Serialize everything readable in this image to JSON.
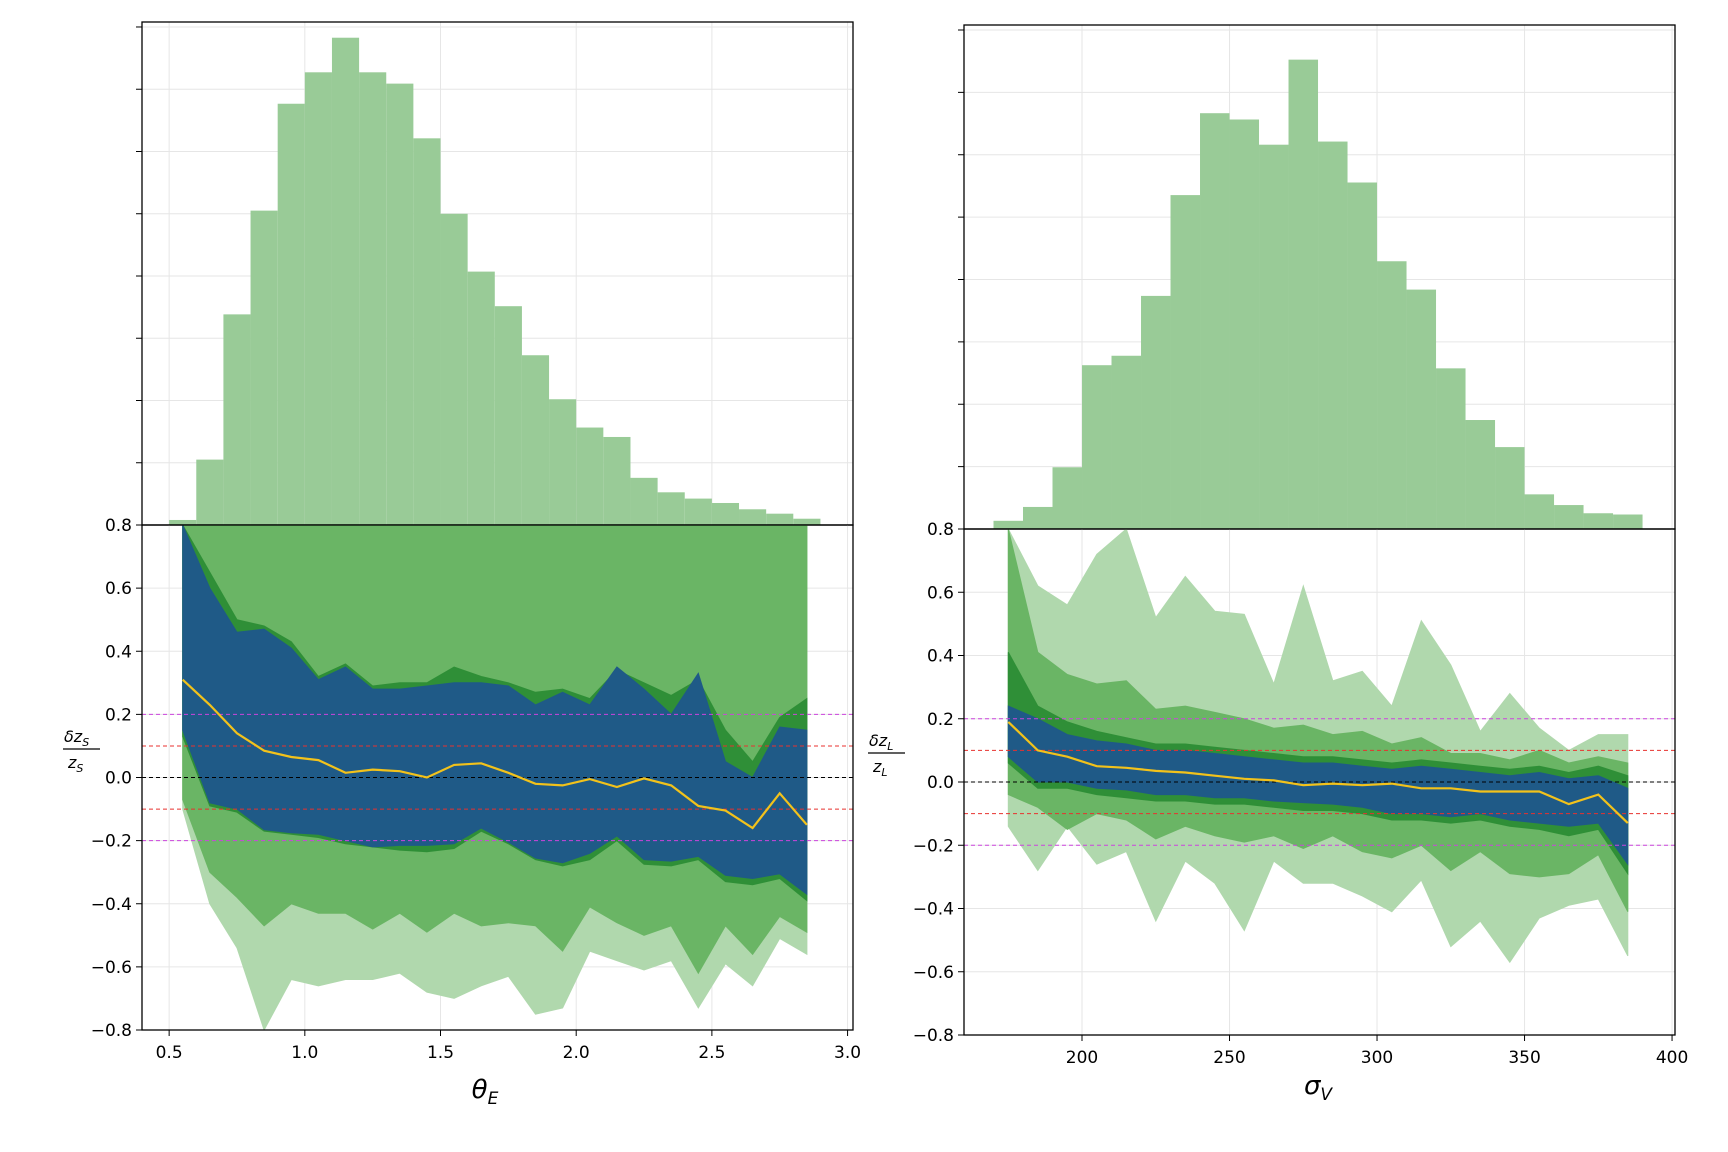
{
  "chart_data": [
    {
      "type": "histogram",
      "panel": "left-top",
      "bin_edges": [
        0.5,
        0.6,
        0.7,
        0.8,
        0.9,
        1.0,
        1.1,
        1.2,
        1.3,
        1.4,
        1.5,
        1.6,
        1.7,
        1.8,
        1.9,
        2.0,
        2.1,
        2.2,
        2.3,
        2.4,
        2.5,
        2.6,
        2.7,
        2.8,
        2.9
      ],
      "counts": [
        0.8,
        10.4,
        33.5,
        50.0,
        67.0,
        72.0,
        77.5,
        72.0,
        70.2,
        61.5,
        49.5,
        40.3,
        34.8,
        27.0,
        20.0,
        15.5,
        14.0,
        7.5,
        5.2,
        4.2,
        3.5,
        2.5,
        1.8,
        1.0
      ],
      "ylim": [
        0,
        80
      ],
      "color": "#99cb97"
    },
    {
      "type": "band",
      "panel": "left-bottom",
      "x": [
        0.55,
        0.65,
        0.75,
        0.85,
        0.95,
        1.05,
        1.15,
        1.25,
        1.35,
        1.45,
        1.55,
        1.65,
        1.75,
        1.85,
        1.95,
        2.05,
        2.15,
        2.25,
        2.35,
        2.45,
        2.55,
        2.65,
        2.75,
        2.85
      ],
      "median": [
        0.31,
        0.23,
        0.14,
        0.085,
        0.065,
        0.055,
        0.015,
        0.025,
        0.02,
        0.0,
        0.04,
        0.045,
        0.015,
        -0.02,
        -0.025,
        -0.005,
        -0.03,
        -0.003,
        -0.025,
        -0.09,
        -0.105,
        -0.16,
        -0.05,
        -0.15
      ],
      "inner_band": {
        "lower": [
          0.15,
          -0.08,
          -0.1,
          -0.165,
          -0.175,
          -0.18,
          -0.2,
          -0.22,
          -0.215,
          -0.215,
          -0.21,
          -0.16,
          -0.205,
          -0.255,
          -0.27,
          -0.24,
          -0.185,
          -0.26,
          -0.265,
          -0.25,
          -0.31,
          -0.32,
          -0.305,
          -0.37
        ],
        "upper": [
          0.8,
          0.6,
          0.46,
          0.47,
          0.41,
          0.31,
          0.35,
          0.28,
          0.28,
          0.29,
          0.3,
          0.3,
          0.29,
          0.23,
          0.27,
          0.23,
          0.35,
          0.28,
          0.2,
          0.33,
          0.05,
          0.0,
          0.16,
          0.15
        ],
        "color": "#1f5a87"
      },
      "middle_band": {
        "lower": [
          0.13,
          -0.09,
          -0.11,
          -0.17,
          -0.18,
          -0.19,
          -0.21,
          -0.22,
          -0.23,
          -0.235,
          -0.225,
          -0.17,
          -0.21,
          -0.26,
          -0.28,
          -0.26,
          -0.2,
          -0.275,
          -0.28,
          -0.26,
          -0.33,
          -0.34,
          -0.32,
          -0.39
        ],
        "upper": [
          0.8,
          0.65,
          0.5,
          0.48,
          0.43,
          0.32,
          0.36,
          0.29,
          0.3,
          0.3,
          0.35,
          0.32,
          0.3,
          0.27,
          0.28,
          0.25,
          0.34,
          0.3,
          0.26,
          0.31,
          0.15,
          0.05,
          0.19,
          0.25
        ],
        "color": "#2f8f37"
      },
      "outer_band": {
        "lower": [
          -0.07,
          -0.3,
          -0.38,
          -0.47,
          -0.4,
          -0.43,
          -0.43,
          -0.48,
          -0.43,
          -0.49,
          -0.43,
          -0.47,
          -0.46,
          -0.47,
          -0.55,
          -0.41,
          -0.46,
          -0.5,
          -0.47,
          -0.62,
          -0.47,
          -0.56,
          -0.44,
          -0.49
        ],
        "upper": [
          0.8,
          0.8,
          0.8,
          0.8,
          0.8,
          0.8,
          0.8,
          0.8,
          0.8,
          0.8,
          0.8,
          0.8,
          0.8,
          0.8,
          0.8,
          0.8,
          0.8,
          0.8,
          0.8,
          0.8,
          0.8,
          0.8,
          0.8,
          0.8
        ],
        "color": "#6ab565"
      },
      "outermost_band": {
        "lower": [
          -0.1,
          -0.4,
          -0.54,
          -0.8,
          -0.64,
          -0.66,
          -0.64,
          -0.64,
          -0.62,
          -0.68,
          -0.7,
          -0.66,
          -0.63,
          -0.75,
          -0.73,
          -0.55,
          -0.58,
          -0.61,
          -0.58,
          -0.73,
          -0.59,
          -0.66,
          -0.51,
          -0.56
        ],
        "upper": [
          0.8,
          0.8,
          0.8,
          0.8,
          0.8,
          0.72,
          0.8,
          0.8,
          0.8,
          0.7,
          0.8,
          0.8,
          0.8,
          0.8,
          0.73,
          0.62,
          0.8,
          0.8,
          0.55,
          0.8,
          0.8,
          0.5,
          0.49,
          0.8
        ],
        "color": "#b0d8ad"
      },
      "reference_lines": [
        {
          "y": 0.0,
          "color": "#000000"
        },
        {
          "y": 0.1,
          "color": "#e8322f"
        },
        {
          "y": -0.1,
          "color": "#e8322f"
        },
        {
          "y": 0.2,
          "color": "#cc44dd"
        },
        {
          "y": -0.2,
          "color": "#cc44dd"
        }
      ],
      "median_color": "#f2c21b",
      "xlim": [
        0.4,
        3.02
      ],
      "ylim": [
        -0.8,
        0.8
      ],
      "xticks": [
        0.5,
        1.0,
        1.5,
        2.0,
        2.5,
        3.0
      ],
      "xtick_labels": [
        "0.5",
        "1.0",
        "1.5",
        "2.0",
        "2.5",
        "3.0"
      ],
      "yticks": [
        -0.8,
        -0.6,
        -0.4,
        -0.2,
        0.0,
        0.2,
        0.4,
        0.6,
        0.8
      ],
      "ytick_labels": [
        "−0.8",
        "−0.6",
        "−0.4",
        "−0.2",
        "0.0",
        "0.2",
        "0.4",
        "0.6",
        "0.8"
      ],
      "xlabel": "θ",
      "xlabel_sub": "E",
      "ylabel_num": "δz",
      "ylabel_num_sub": "S",
      "ylabel_den": "z",
      "ylabel_den_sub": "S"
    },
    {
      "type": "histogram",
      "panel": "right-top",
      "bin_edges": [
        170,
        180,
        190,
        200,
        210,
        220,
        230,
        240,
        250,
        260,
        270,
        280,
        290,
        300,
        310,
        320,
        330,
        340,
        350,
        360,
        370,
        380,
        390
      ],
      "counts": [
        1.3,
        3.5,
        9.8,
        26.0,
        27.5,
        37.0,
        53.0,
        66.0,
        65.0,
        61.0,
        74.5,
        61.5,
        55.0,
        42.5,
        38.0,
        25.5,
        17.3,
        13.0,
        5.5,
        3.8,
        2.5,
        2.3
      ],
      "ylim": [
        0,
        80
      ],
      "color": "#99cb97"
    },
    {
      "type": "band",
      "panel": "right-bottom",
      "x": [
        175,
        185,
        195,
        205,
        215,
        225,
        235,
        245,
        255,
        265,
        275,
        285,
        295,
        305,
        315,
        325,
        335,
        345,
        355,
        365,
        375,
        385
      ],
      "median": [
        0.19,
        0.1,
        0.08,
        0.05,
        0.045,
        0.035,
        0.03,
        0.02,
        0.01,
        0.005,
        -0.01,
        -0.005,
        -0.01,
        -0.005,
        -0.02,
        -0.02,
        -0.03,
        -0.03,
        -0.03,
        -0.07,
        -0.04,
        -0.13
      ],
      "inner_band": {
        "lower": [
          0.08,
          0.0,
          0.0,
          -0.02,
          -0.025,
          -0.04,
          -0.04,
          -0.05,
          -0.05,
          -0.06,
          -0.065,
          -0.07,
          -0.08,
          -0.1,
          -0.1,
          -0.11,
          -0.1,
          -0.12,
          -0.13,
          -0.14,
          -0.13,
          -0.26
        ],
        "upper": [
          0.24,
          0.2,
          0.15,
          0.13,
          0.12,
          0.1,
          0.1,
          0.09,
          0.08,
          0.07,
          0.06,
          0.06,
          0.05,
          0.04,
          0.05,
          0.04,
          0.03,
          0.02,
          0.03,
          0.01,
          0.02,
          -0.02
        ],
        "color": "#1f5a87"
      },
      "middle_band": {
        "lower": [
          0.06,
          -0.02,
          -0.02,
          -0.04,
          -0.05,
          -0.06,
          -0.06,
          -0.07,
          -0.07,
          -0.08,
          -0.09,
          -0.09,
          -0.1,
          -0.12,
          -0.12,
          -0.13,
          -0.12,
          -0.14,
          -0.15,
          -0.17,
          -0.15,
          -0.29
        ],
        "upper": [
          0.41,
          0.24,
          0.19,
          0.16,
          0.14,
          0.12,
          0.12,
          0.11,
          0.1,
          0.09,
          0.08,
          0.08,
          0.07,
          0.06,
          0.07,
          0.06,
          0.05,
          0.04,
          0.05,
          0.03,
          0.05,
          0.02
        ],
        "color": "#2f8f37"
      },
      "outer_band": {
        "lower": [
          -0.04,
          -0.08,
          -0.15,
          -0.1,
          -0.12,
          -0.18,
          -0.14,
          -0.17,
          -0.19,
          -0.17,
          -0.21,
          -0.17,
          -0.22,
          -0.24,
          -0.2,
          -0.28,
          -0.22,
          -0.29,
          -0.3,
          -0.29,
          -0.23,
          -0.41
        ],
        "upper": [
          0.8,
          0.41,
          0.34,
          0.31,
          0.32,
          0.23,
          0.24,
          0.22,
          0.2,
          0.17,
          0.18,
          0.15,
          0.16,
          0.12,
          0.14,
          0.09,
          0.09,
          0.07,
          0.1,
          0.06,
          0.08,
          0.06
        ],
        "color": "#6ab565"
      },
      "outermost_band": {
        "lower": [
          -0.14,
          -0.28,
          -0.14,
          -0.26,
          -0.22,
          -0.44,
          -0.25,
          -0.32,
          -0.47,
          -0.25,
          -0.32,
          -0.32,
          -0.36,
          -0.41,
          -0.31,
          -0.52,
          -0.44,
          -0.57,
          -0.43,
          -0.39,
          -0.37,
          -0.55
        ],
        "upper": [
          0.8,
          0.62,
          0.56,
          0.72,
          0.8,
          0.52,
          0.65,
          0.54,
          0.53,
          0.31,
          0.62,
          0.32,
          0.35,
          0.24,
          0.51,
          0.37,
          0.16,
          0.28,
          0.17,
          0.1,
          0.15,
          0.15
        ],
        "color": "#b0d8ad"
      },
      "reference_lines": [
        {
          "y": 0.0,
          "color": "#000000"
        },
        {
          "y": 0.1,
          "color": "#e8322f"
        },
        {
          "y": -0.1,
          "color": "#e8322f"
        },
        {
          "y": 0.2,
          "color": "#cc44dd"
        },
        {
          "y": -0.2,
          "color": "#cc44dd"
        }
      ],
      "median_color": "#f2c21b",
      "xlim": [
        160,
        401
      ],
      "ylim": [
        -0.8,
        0.8
      ],
      "xticks": [
        200,
        250,
        300,
        350,
        400
      ],
      "xtick_labels": [
        "200",
        "250",
        "300",
        "350",
        "400"
      ],
      "yticks": [
        -0.8,
        -0.6,
        -0.4,
        -0.2,
        0.0,
        0.2,
        0.4,
        0.6,
        0.8
      ],
      "ytick_labels": [
        "−0.8",
        "−0.6",
        "−0.4",
        "−0.2",
        "0.0",
        "0.2",
        "0.4",
        "0.6",
        "0.8"
      ],
      "xlabel": "σ",
      "xlabel_sub": "V",
      "ylabel_num": "δz",
      "ylabel_num_sub": "L",
      "ylabel_den": "z",
      "ylabel_den_sub": "L"
    }
  ]
}
